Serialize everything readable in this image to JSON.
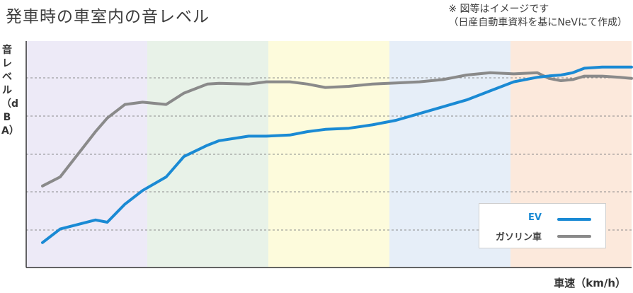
{
  "header": {
    "title": "発車時の車室内の音レベル",
    "note_line1": "※ 図等はイメージです",
    "note_line2": "（日産自動車資料を基にNeVにて作成）"
  },
  "chart_data": {
    "type": "line",
    "title": "発車時の車室内の音レベル",
    "ylabel": "音レベル（dBA）",
    "xlabel": "車速（km/h）",
    "x_ticks_labeled": false,
    "y_ticks_labeled": false,
    "grid": "horizontal dashed",
    "legend_position": "bottom-right",
    "x": [
      0,
      0.03,
      0.09,
      0.11,
      0.14,
      0.17,
      0.21,
      0.24,
      0.28,
      0.3,
      0.35,
      0.38,
      0.42,
      0.45,
      0.48,
      0.52,
      0.56,
      0.6,
      0.64,
      0.68,
      0.72,
      0.76,
      0.8,
      0.84,
      0.86,
      0.88,
      0.9,
      0.92,
      0.95,
      0.98,
      1.0
    ],
    "series": [
      {
        "name": "EV",
        "color": "#1a8ad4",
        "values": [
          0.11,
          0.17,
          0.21,
          0.2,
          0.28,
          0.34,
          0.4,
          0.49,
          0.54,
          0.56,
          0.58,
          0.58,
          0.585,
          0.6,
          0.61,
          0.615,
          0.63,
          0.65,
          0.68,
          0.71,
          0.74,
          0.78,
          0.82,
          0.84,
          0.846,
          0.85,
          0.86,
          0.88,
          0.885,
          0.885,
          0.885
        ]
      },
      {
        "name": "ガソリン車",
        "color": "#8a8a8a",
        "values": [
          0.36,
          0.4,
          0.6,
          0.66,
          0.72,
          0.73,
          0.72,
          0.77,
          0.81,
          0.813,
          0.81,
          0.82,
          0.82,
          0.81,
          0.795,
          0.8,
          0.81,
          0.815,
          0.82,
          0.83,
          0.85,
          0.86,
          0.855,
          0.86,
          0.835,
          0.825,
          0.83,
          0.845,
          0.845,
          0.84,
          0.835
        ]
      }
    ],
    "bands": [
      {
        "color": "#edeaf7"
      },
      {
        "color": "#e8f2e8"
      },
      {
        "color": "#fdfbdc"
      },
      {
        "color": "#e6eef8"
      },
      {
        "color": "#fce9dc"
      }
    ]
  }
}
